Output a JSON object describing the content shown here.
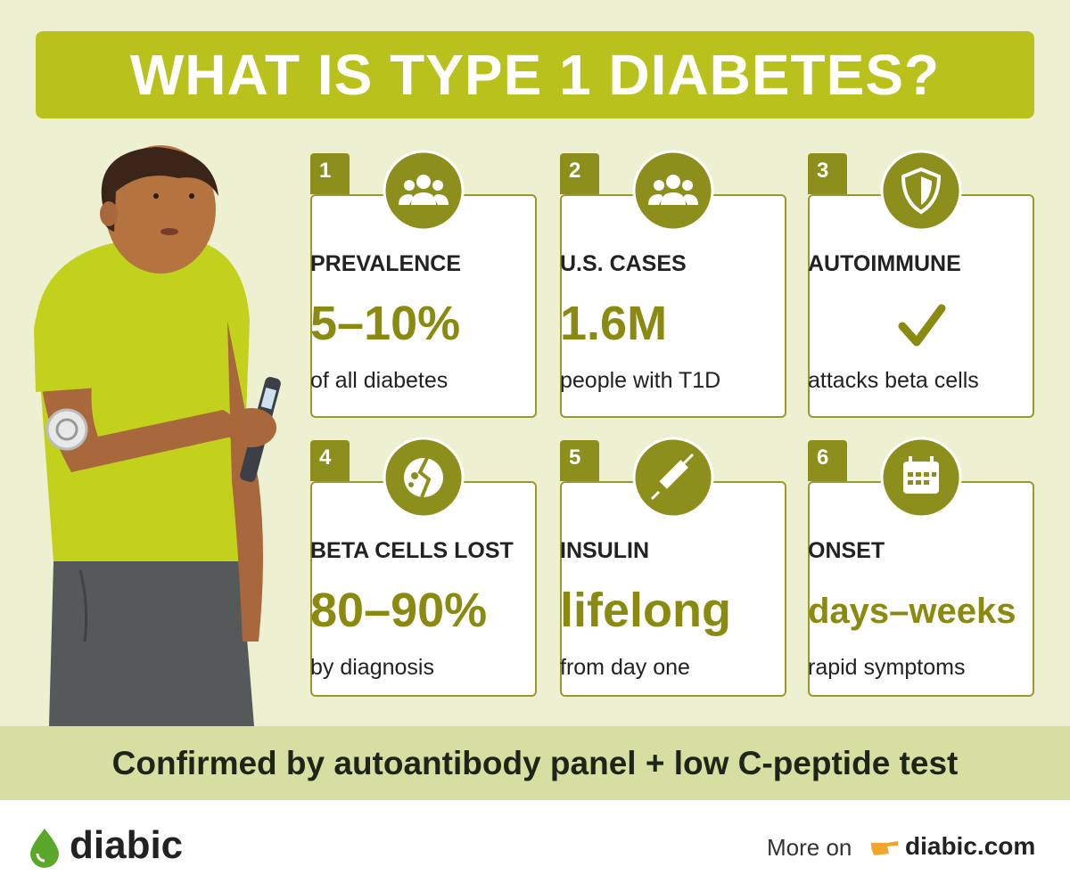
{
  "header": {
    "title": "WHAT IS TYPE 1 DIABETES?"
  },
  "cards": [
    {
      "number": "1",
      "label": "PREVALENCE",
      "value": "5–10%",
      "caption": "of all diabetes"
    },
    {
      "number": "2",
      "label": "U.S. CASES",
      "value": "1.6M",
      "caption": "people with T1D"
    },
    {
      "number": "3",
      "label": "AUTOIMMUNE",
      "caption": "attacks beta cells"
    },
    {
      "number": "4",
      "label": "BETA CELLS LOST",
      "value": "80–90%",
      "caption": "by diagnosis"
    },
    {
      "number": "5",
      "label": "INSULIN",
      "value": "lifelong",
      "caption": "from day one"
    },
    {
      "number": "6",
      "label": "ONSET",
      "value": "days–weeks",
      "caption": "rapid symptoms"
    }
  ],
  "banner": {
    "text": "Confirmed by autoantibody panel + low C-peptide test"
  },
  "footer": {
    "brand": "diabic",
    "more": "More on",
    "link": "diabic.com"
  }
}
